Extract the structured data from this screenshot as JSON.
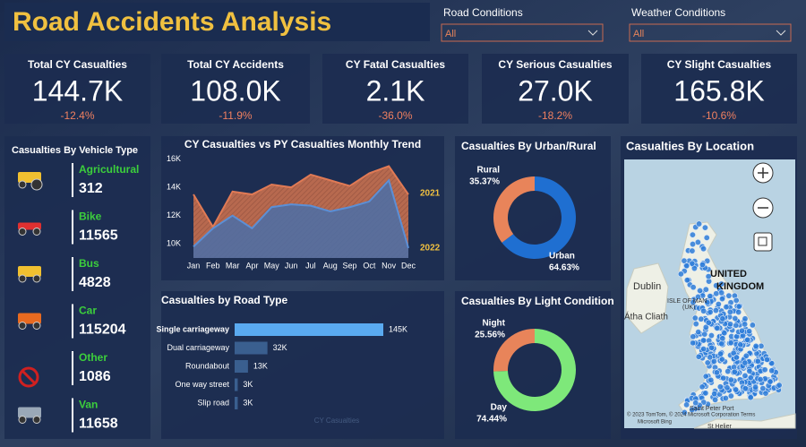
{
  "header": {
    "title": "Road Accidents Analysis"
  },
  "filters": [
    {
      "label": "Road Conditions",
      "value": "All"
    },
    {
      "label": "Weather Conditions",
      "value": "All"
    }
  ],
  "kpis": [
    {
      "label": "Total CY Casualties",
      "value": "144.7K",
      "change": "-12.4%"
    },
    {
      "label": "Total CY Accidents",
      "value": "108.0K",
      "change": "-11.9%"
    },
    {
      "label": "CY Fatal Casualties",
      "value": "2.1K",
      "change": "-36.0%"
    },
    {
      "label": "CY Serious Casualties",
      "value": "27.0K",
      "change": "-18.2%"
    },
    {
      "label": "CY Slight Casualties",
      "value": "165.8K",
      "change": "-10.6%"
    }
  ],
  "vehicles": {
    "title": "Casualties By Vehicle Type",
    "items": [
      {
        "name": "Agricultural",
        "value": 312
      },
      {
        "name": "Bike",
        "value": 11565
      },
      {
        "name": "Bus",
        "value": 4828
      },
      {
        "name": "Car",
        "value": 115204
      },
      {
        "name": "Other",
        "value": 1086
      },
      {
        "name": "Van",
        "value": 11658
      }
    ]
  },
  "chart_data": [
    {
      "type": "line",
      "title": "CY Casualties vs PY Casualties Monthly Trend",
      "categories": [
        "Jan",
        "Feb",
        "Mar",
        "Apr",
        "May",
        "Jun",
        "Jul",
        "Aug",
        "Sep",
        "Oct",
        "Nov",
        "Dec"
      ],
      "series": [
        {
          "name": "2021",
          "color": "#e07a55",
          "values": [
            13500,
            11200,
            13700,
            13500,
            14200,
            14000,
            14900,
            14500,
            14100,
            15000,
            15500,
            13500
          ]
        },
        {
          "name": "2022",
          "color": "#5b8fd6",
          "values": [
            9800,
            11100,
            12000,
            11100,
            12600,
            12800,
            12700,
            12300,
            12600,
            13000,
            14500,
            9700
          ]
        }
      ],
      "ylim": [
        9000,
        16800
      ],
      "yticks": [
        {
          "value": 10000,
          "label": "10K"
        },
        {
          "value": 12000,
          "label": "12K"
        },
        {
          "value": 14000,
          "label": "14K"
        },
        {
          "value": 16000,
          "label": "16K"
        }
      ]
    },
    {
      "type": "bar",
      "orientation": "horizontal",
      "title": "Casualties by Road Type",
      "categories": [
        "Single carriageway",
        "Dual carriageway",
        "Roundabout",
        "One way street",
        "Slip road"
      ],
      "values": [
        145000,
        32000,
        13000,
        3000,
        3000
      ],
      "value_labels": [
        "145K",
        "32K",
        "13K",
        "3K",
        "3K"
      ],
      "colors": [
        "#5aaaf0",
        "#3a5f8f",
        "#3a5f8f",
        "#3a5f8f",
        "#3a5f8f"
      ],
      "x_label": "CY Casualties"
    },
    {
      "type": "pie",
      "donut": true,
      "title": "Casualties By Urban/Rural",
      "categories": [
        "Urban",
        "Rural"
      ],
      "values": [
        64.63,
        35.37
      ],
      "value_labels": [
        "64.63%",
        "35.37%"
      ],
      "colors": [
        "#1f6fd1",
        "#e8845a"
      ]
    },
    {
      "type": "pie",
      "donut": true,
      "title": "Casualties By Light Condition",
      "categories": [
        "Day",
        "Night"
      ],
      "values": [
        74.44,
        25.56
      ],
      "value_labels": [
        "74.44%",
        "25.56%"
      ],
      "colors": [
        "#7ee87a",
        "#e8845a"
      ]
    }
  ],
  "map": {
    "title": "Casualties By Location",
    "labels": [
      "UNITED",
      "KINGDOM",
      "Dublin",
      "Átha Cliath",
      "ISLE OF MAN",
      "(UK)",
      "Saint Peter Port",
      "St Helier",
      "© 2023 TomTom, © 2024 Microsoft Corporation Terms",
      "Microsoft Bing"
    ]
  }
}
